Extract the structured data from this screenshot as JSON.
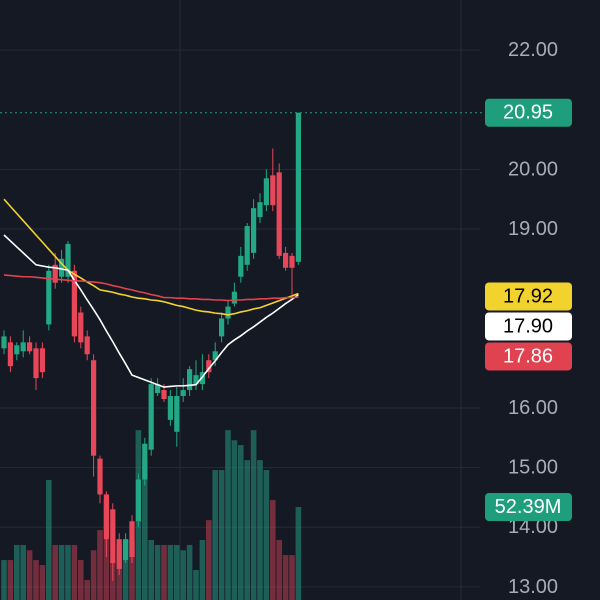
{
  "chart_data": {
    "type": "candlestick",
    "open": [
      17.0,
      17.1,
      16.9,
      16.95,
      17.1,
      17.0,
      17.0,
      17.4,
      18.4,
      18.2,
      18.2,
      18.3,
      17.6,
      17.2,
      16.8,
      15.15,
      14.55,
      14.3,
      13.8,
      13.45,
      14.1,
      14.1,
      14.8,
      15.3,
      16.25,
      16.3,
      15.8,
      15.6,
      16.2,
      16.3,
      16.4,
      16.4,
      16.8,
      16.8,
      17.2,
      17.5,
      17.75,
      18.2,
      18.4,
      18.6,
      19.2,
      19.4,
      19.9,
      19.95,
      18.6,
      18.55,
      18.45
    ],
    "high": [
      17.3,
      17.2,
      17.1,
      17.3,
      17.2,
      17.1,
      17.1,
      18.4,
      18.6,
      18.65,
      18.8,
      18.4,
      17.7,
      17.3,
      16.9,
      15.2,
      14.6,
      14.4,
      13.9,
      13.9,
      14.2,
      14.9,
      15.5,
      16.5,
      16.5,
      16.4,
      16.3,
      16.35,
      16.5,
      16.7,
      16.8,
      16.9,
      16.9,
      17.1,
      17.6,
      17.8,
      18.1,
      18.7,
      19.1,
      19.5,
      19.6,
      20.0,
      20.35,
      20.1,
      18.7,
      18.6,
      20.95
    ],
    "low": [
      16.9,
      16.6,
      16.8,
      16.85,
      16.9,
      16.3,
      16.5,
      17.3,
      18.0,
      18.1,
      18.1,
      17.1,
      17.0,
      16.8,
      14.85,
      14.4,
      13.5,
      13.1,
      13.2,
      13.4,
      13.4,
      14.0,
      14.7,
      15.2,
      16.2,
      16.1,
      15.7,
      15.35,
      16.1,
      16.2,
      16.3,
      16.3,
      16.5,
      16.7,
      17.1,
      17.4,
      17.7,
      18.1,
      18.3,
      18.5,
      19.1,
      19.3,
      19.3,
      18.5,
      18.3,
      17.9,
      18.4
    ],
    "close": [
      17.2,
      16.7,
      17.05,
      17.1,
      16.95,
      16.5,
      16.6,
      18.3,
      18.1,
      18.5,
      18.75,
      17.2,
      17.1,
      16.9,
      15.2,
      14.55,
      13.8,
      13.4,
      13.3,
      13.8,
      13.5,
      14.8,
      15.4,
      16.4,
      16.4,
      16.15,
      16.2,
      16.2,
      16.3,
      16.65,
      16.55,
      16.6,
      16.6,
      16.95,
      17.5,
      17.7,
      17.95,
      18.55,
      19.05,
      19.35,
      19.45,
      19.85,
      19.4,
      18.55,
      18.35,
      18.35,
      20.95
    ],
    "close_label": "20.95",
    "up_color": "#22a884",
    "down_color": "#e8475a",
    "price_line_color": "#1f9e7e",
    "volume": [
      22.5,
      22.5,
      31,
      31,
      28,
      22.5,
      19.7,
      67.6,
      31,
      31,
      31,
      31,
      22.5,
      11.3,
      28,
      39.4,
      56.3,
      22.5,
      31,
      33.8,
      33.8,
      95.7,
      78.8,
      33.8,
      31,
      31,
      31,
      31,
      28,
      31,
      16.9,
      33.8,
      45,
      73.2,
      73.2,
      95.7,
      90,
      87.3,
      78.8,
      95.7,
      78.8,
      73.2,
      56.3,
      33.8,
      25.3,
      25.3,
      52.39
    ],
    "volume_label": "52.39M",
    "volume_lim": [
      0,
      200
    ],
    "volume_up_color": "rgba(38,166,136,0.5)",
    "volume_down_color": "rgba(232,71,90,0.45)",
    "moving_averages": [
      {
        "color": "#f2d22c",
        "label_text_color": "#000000",
        "last_label": "17.92",
        "values": [
          19.5,
          19.38,
          19.26,
          19.14,
          19.02,
          18.9,
          18.78,
          18.66,
          18.54,
          18.42,
          18.31,
          18.24,
          18.18,
          18.11,
          18.05,
          17.98,
          17.96,
          17.94,
          17.91,
          17.89,
          17.86,
          17.84,
          17.83,
          17.81,
          17.8,
          17.78,
          17.75,
          17.72,
          17.7,
          17.67,
          17.64,
          17.62,
          17.61,
          17.59,
          17.58,
          17.56,
          17.58,
          17.61,
          17.63,
          17.66,
          17.68,
          17.72,
          17.76,
          17.8,
          17.84,
          17.88,
          17.92
        ]
      },
      {
        "color": "#ffffff",
        "label_text_color": "#000000",
        "last_label": "17.90",
        "values": [
          18.9,
          18.8,
          18.7,
          18.6,
          18.5,
          18.4,
          18.38,
          18.36,
          18.35,
          18.33,
          18.31,
          18.14,
          17.98,
          17.81,
          17.65,
          17.48,
          17.29,
          17.11,
          16.92,
          16.74,
          16.55,
          16.51,
          16.47,
          16.43,
          16.39,
          16.35,
          16.36,
          16.37,
          16.37,
          16.38,
          16.39,
          16.52,
          16.66,
          16.79,
          16.93,
          17.06,
          17.14,
          17.21,
          17.29,
          17.36,
          17.44,
          17.52,
          17.59,
          17.67,
          17.75,
          17.82,
          17.9
        ]
      },
      {
        "color": "#e0434f",
        "label_text_color": "#ffffff",
        "last_label": "17.86",
        "values": [
          18.23,
          18.22,
          18.21,
          18.2,
          18.2,
          18.19,
          18.18,
          18.17,
          18.16,
          18.15,
          18.14,
          18.13,
          18.13,
          18.12,
          18.11,
          18.1,
          18.08,
          18.05,
          18.03,
          18.0,
          17.98,
          17.95,
          17.93,
          17.9,
          17.88,
          17.85,
          17.85,
          17.84,
          17.84,
          17.83,
          17.83,
          17.82,
          17.82,
          17.81,
          17.81,
          17.8,
          17.81,
          17.81,
          17.82,
          17.82,
          17.83,
          17.83,
          17.84,
          17.84,
          17.85,
          17.85,
          17.86
        ]
      }
    ],
    "ylim": [
      12.78,
      22.84
    ],
    "yticks": [
      {
        "value": 22,
        "label": "22.00"
      },
      {
        "value": 20,
        "label": "20.00"
      },
      {
        "value": 19,
        "label": "19.00"
      },
      {
        "value": 16,
        "label": "16.00"
      },
      {
        "value": 15,
        "label": "15.00"
      },
      {
        "value": 14,
        "label": "14.00"
      },
      {
        "value": 13,
        "label": "13.00"
      }
    ],
    "grid": true
  }
}
